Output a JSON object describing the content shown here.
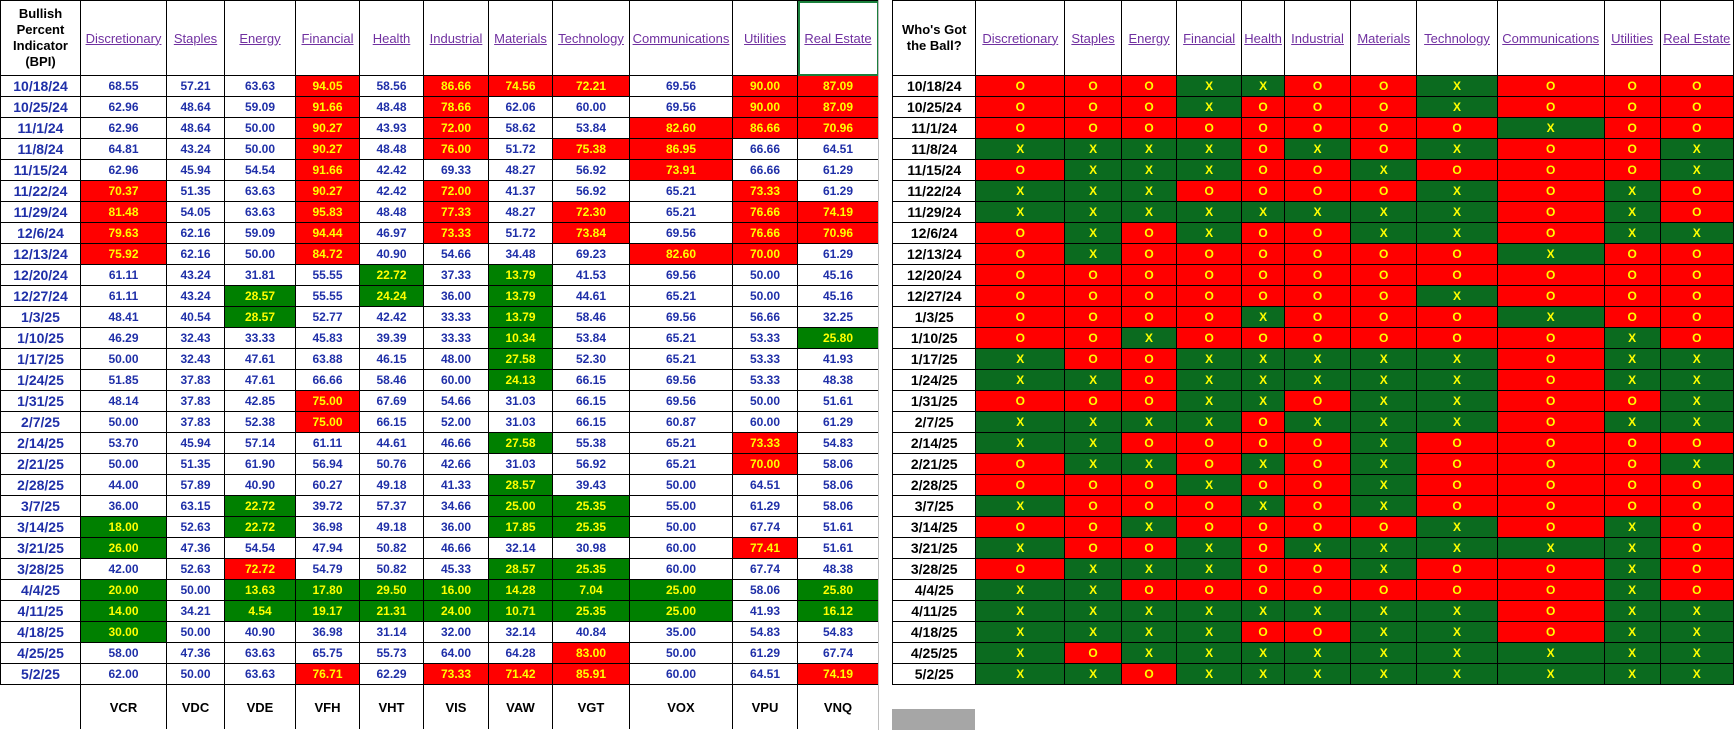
{
  "bpi_header": "Bullish Percent Indicator (BPI)",
  "ball_header": "Who's Got the Ball?",
  "sectors": [
    "Discretionary",
    "Staples",
    "Energy",
    "Financial",
    "Health",
    "Industrial",
    "Materials",
    "Technology",
    "Communications",
    "Utilities",
    "Real Estate"
  ],
  "tickers": [
    "VCR",
    "VDC",
    "VDE",
    "VFH",
    "VHT",
    "VIS",
    "VAW",
    "VGT",
    "VOX",
    "VPU",
    "VNQ"
  ],
  "dates": [
    "10/18/24",
    "10/25/24",
    "11/1/24",
    "11/8/24",
    "11/15/24",
    "11/22/24",
    "11/29/24",
    "12/6/24",
    "12/13/24",
    "12/20/24",
    "12/27/24",
    "1/3/25",
    "1/10/25",
    "1/17/25",
    "1/24/25",
    "1/31/25",
    "2/7/25",
    "2/14/25",
    "2/21/25",
    "2/28/25",
    "3/7/25",
    "3/14/25",
    "3/21/25",
    "3/28/25",
    "4/4/25",
    "4/11/25",
    "4/18/25",
    "4/25/25",
    "5/2/25"
  ],
  "bpi_values": [
    [
      "68.55",
      "57.21",
      "63.63",
      "94.05",
      "58.56",
      "86.66",
      "74.56",
      "72.21",
      "69.56",
      "90.00",
      "87.09"
    ],
    [
      "62.96",
      "48.64",
      "59.09",
      "91.66",
      "48.48",
      "78.66",
      "62.06",
      "60.00",
      "69.56",
      "90.00",
      "87.09"
    ],
    [
      "62.96",
      "48.64",
      "50.00",
      "90.27",
      "43.93",
      "72.00",
      "58.62",
      "53.84",
      "82.60",
      "86.66",
      "70.96"
    ],
    [
      "64.81",
      "43.24",
      "50.00",
      "90.27",
      "48.48",
      "76.00",
      "51.72",
      "75.38",
      "86.95",
      "66.66",
      "64.51"
    ],
    [
      "62.96",
      "45.94",
      "54.54",
      "91.66",
      "42.42",
      "69.33",
      "48.27",
      "56.92",
      "73.91",
      "66.66",
      "61.29"
    ],
    [
      "70.37",
      "51.35",
      "63.63",
      "90.27",
      "42.42",
      "72.00",
      "41.37",
      "56.92",
      "65.21",
      "73.33",
      "61.29"
    ],
    [
      "81.48",
      "54.05",
      "63.63",
      "95.83",
      "48.48",
      "77.33",
      "48.27",
      "72.30",
      "65.21",
      "76.66",
      "74.19"
    ],
    [
      "79.63",
      "62.16",
      "59.09",
      "94.44",
      "46.97",
      "73.33",
      "51.72",
      "73.84",
      "69.56",
      "76.66",
      "70.96"
    ],
    [
      "75.92",
      "62.16",
      "50.00",
      "84.72",
      "40.90",
      "54.66",
      "34.48",
      "69.23",
      "82.60",
      "70.00",
      "61.29"
    ],
    [
      "61.11",
      "43.24",
      "31.81",
      "55.55",
      "22.72",
      "37.33",
      "13.79",
      "41.53",
      "69.56",
      "50.00",
      "45.16"
    ],
    [
      "61.11",
      "43.24",
      "28.57",
      "55.55",
      "24.24",
      "36.00",
      "13.79",
      "44.61",
      "65.21",
      "50.00",
      "45.16"
    ],
    [
      "48.41",
      "40.54",
      "28.57",
      "52.77",
      "42.42",
      "33.33",
      "13.79",
      "58.46",
      "69.56",
      "56.66",
      "32.25"
    ],
    [
      "46.29",
      "32.43",
      "33.33",
      "45.83",
      "39.39",
      "33.33",
      "10.34",
      "53.84",
      "65.21",
      "53.33",
      "25.80"
    ],
    [
      "50.00",
      "32.43",
      "47.61",
      "63.88",
      "46.15",
      "48.00",
      "27.58",
      "52.30",
      "65.21",
      "53.33",
      "41.93"
    ],
    [
      "51.85",
      "37.83",
      "47.61",
      "66.66",
      "58.46",
      "60.00",
      "24.13",
      "66.15",
      "69.56",
      "53.33",
      "48.38"
    ],
    [
      "48.14",
      "37.83",
      "42.85",
      "75.00",
      "67.69",
      "54.66",
      "31.03",
      "66.15",
      "69.56",
      "50.00",
      "51.61"
    ],
    [
      "50.00",
      "37.83",
      "52.38",
      "75.00",
      "66.15",
      "52.00",
      "31.03",
      "66.15",
      "60.87",
      "60.00",
      "61.29"
    ],
    [
      "53.70",
      "45.94",
      "57.14",
      "61.11",
      "44.61",
      "46.66",
      "27.58",
      "55.38",
      "65.21",
      "73.33",
      "54.83"
    ],
    [
      "50.00",
      "51.35",
      "61.90",
      "56.94",
      "50.76",
      "42.66",
      "31.03",
      "56.92",
      "65.21",
      "70.00",
      "58.06"
    ],
    [
      "44.00",
      "57.89",
      "40.90",
      "60.27",
      "49.18",
      "41.33",
      "28.57",
      "39.43",
      "50.00",
      "64.51",
      "58.06"
    ],
    [
      "36.00",
      "63.15",
      "22.72",
      "39.72",
      "57.37",
      "34.66",
      "25.00",
      "25.35",
      "55.00",
      "61.29",
      "58.06"
    ],
    [
      "18.00",
      "52.63",
      "22.72",
      "36.98",
      "49.18",
      "36.00",
      "17.85",
      "25.35",
      "50.00",
      "67.74",
      "51.61"
    ],
    [
      "26.00",
      "47.36",
      "54.54",
      "47.94",
      "50.82",
      "46.66",
      "32.14",
      "30.98",
      "60.00",
      "77.41",
      "51.61"
    ],
    [
      "42.00",
      "52.63",
      "72.72",
      "54.79",
      "50.82",
      "45.33",
      "28.57",
      "25.35",
      "60.00",
      "67.74",
      "48.38"
    ],
    [
      "20.00",
      "50.00",
      "13.63",
      "17.80",
      "29.50",
      "16.00",
      "14.28",
      "7.04",
      "25.00",
      "58.06",
      "25.80"
    ],
    [
      "14.00",
      "34.21",
      "4.54",
      "19.17",
      "21.31",
      "24.00",
      "10.71",
      "25.35",
      "25.00",
      "41.93",
      "16.12"
    ],
    [
      "30.00",
      "50.00",
      "40.90",
      "36.98",
      "31.14",
      "32.00",
      "32.14",
      "40.84",
      "35.00",
      "54.83",
      "54.83"
    ],
    [
      "58.00",
      "47.36",
      "63.63",
      "65.75",
      "55.73",
      "64.00",
      "64.28",
      "83.00",
      "50.00",
      "61.29",
      "67.74"
    ],
    [
      "62.00",
      "50.00",
      "63.63",
      "76.71",
      "62.29",
      "73.33",
      "71.42",
      "85.91",
      "60.00",
      "64.51",
      "74.19"
    ]
  ],
  "bpi_status": [
    [
      "n",
      "n",
      "n",
      "h",
      "n",
      "h",
      "h",
      "h",
      "n",
      "h",
      "h"
    ],
    [
      "n",
      "n",
      "n",
      "h",
      "n",
      "h",
      "n",
      "n",
      "n",
      "h",
      "h"
    ],
    [
      "n",
      "n",
      "n",
      "h",
      "n",
      "h",
      "n",
      "n",
      "h",
      "h",
      "h"
    ],
    [
      "n",
      "n",
      "n",
      "h",
      "n",
      "h",
      "n",
      "h",
      "h",
      "n",
      "n"
    ],
    [
      "n",
      "n",
      "n",
      "h",
      "n",
      "n",
      "n",
      "n",
      "h",
      "n",
      "n"
    ],
    [
      "h",
      "n",
      "n",
      "h",
      "n",
      "h",
      "n",
      "n",
      "n",
      "h",
      "n"
    ],
    [
      "h",
      "n",
      "n",
      "h",
      "n",
      "h",
      "n",
      "h",
      "n",
      "h",
      "h"
    ],
    [
      "h",
      "n",
      "n",
      "h",
      "n",
      "h",
      "n",
      "h",
      "n",
      "h",
      "h"
    ],
    [
      "h",
      "n",
      "n",
      "h",
      "n",
      "n",
      "n",
      "n",
      "h",
      "h",
      "n"
    ],
    [
      "n",
      "n",
      "n",
      "n",
      "l",
      "n",
      "l",
      "n",
      "n",
      "n",
      "n"
    ],
    [
      "n",
      "n",
      "l",
      "n",
      "l",
      "n",
      "l",
      "n",
      "n",
      "n",
      "n"
    ],
    [
      "n",
      "n",
      "l",
      "n",
      "n",
      "n",
      "l",
      "n",
      "n",
      "n",
      "n"
    ],
    [
      "n",
      "n",
      "n",
      "n",
      "n",
      "n",
      "l",
      "n",
      "n",
      "n",
      "l"
    ],
    [
      "n",
      "n",
      "n",
      "n",
      "n",
      "n",
      "l",
      "n",
      "n",
      "n",
      "n"
    ],
    [
      "n",
      "n",
      "n",
      "n",
      "n",
      "n",
      "l",
      "n",
      "n",
      "n",
      "n"
    ],
    [
      "n",
      "n",
      "n",
      "h",
      "n",
      "n",
      "n",
      "n",
      "n",
      "n",
      "n"
    ],
    [
      "n",
      "n",
      "n",
      "h",
      "n",
      "n",
      "n",
      "n",
      "n",
      "n",
      "n"
    ],
    [
      "n",
      "n",
      "n",
      "n",
      "n",
      "n",
      "l",
      "n",
      "n",
      "h",
      "n"
    ],
    [
      "n",
      "n",
      "n",
      "n",
      "n",
      "n",
      "n",
      "n",
      "n",
      "h",
      "n"
    ],
    [
      "n",
      "n",
      "n",
      "n",
      "n",
      "n",
      "l",
      "n",
      "n",
      "n",
      "n"
    ],
    [
      "n",
      "n",
      "l",
      "n",
      "n",
      "n",
      "l",
      "l",
      "n",
      "n",
      "n"
    ],
    [
      "l",
      "n",
      "l",
      "n",
      "n",
      "n",
      "l",
      "l",
      "n",
      "n",
      "n"
    ],
    [
      "l",
      "n",
      "n",
      "n",
      "n",
      "n",
      "n",
      "n",
      "n",
      "h",
      "n"
    ],
    [
      "n",
      "n",
      "h",
      "n",
      "n",
      "n",
      "l",
      "l",
      "n",
      "n",
      "n"
    ],
    [
      "l",
      "n",
      "l",
      "l",
      "l",
      "l",
      "l",
      "l",
      "l",
      "n",
      "l"
    ],
    [
      "l",
      "n",
      "l",
      "l",
      "l",
      "l",
      "l",
      "l",
      "l",
      "n",
      "l"
    ],
    [
      "l",
      "n",
      "n",
      "n",
      "n",
      "n",
      "n",
      "n",
      "n",
      "n",
      "n"
    ],
    [
      "n",
      "n",
      "n",
      "n",
      "n",
      "n",
      "n",
      "h",
      "n",
      "n",
      "n"
    ],
    [
      "n",
      "n",
      "n",
      "h",
      "n",
      "h",
      "h",
      "h",
      "n",
      "n",
      "h"
    ]
  ],
  "ball_values": [
    [
      "O",
      "O",
      "O",
      "X",
      "X",
      "O",
      "O",
      "X",
      "O",
      "O",
      "O"
    ],
    [
      "O",
      "O",
      "O",
      "X",
      "O",
      "O",
      "O",
      "X",
      "O",
      "O",
      "O"
    ],
    [
      "O",
      "O",
      "O",
      "O",
      "O",
      "O",
      "O",
      "O",
      "X",
      "O",
      "O"
    ],
    [
      "X",
      "X",
      "X",
      "X",
      "O",
      "X",
      "O",
      "X",
      "O",
      "O",
      "X"
    ],
    [
      "O",
      "X",
      "X",
      "X",
      "O",
      "O",
      "X",
      "O",
      "O",
      "O",
      "X"
    ],
    [
      "X",
      "X",
      "X",
      "O",
      "O",
      "O",
      "O",
      "X",
      "O",
      "X",
      "O"
    ],
    [
      "X",
      "X",
      "X",
      "X",
      "X",
      "X",
      "X",
      "X",
      "O",
      "X",
      "O"
    ],
    [
      "O",
      "X",
      "O",
      "X",
      "O",
      "O",
      "X",
      "X",
      "O",
      "X",
      "X"
    ],
    [
      "O",
      "X",
      "O",
      "O",
      "O",
      "O",
      "O",
      "O",
      "X",
      "O",
      "O"
    ],
    [
      "O",
      "O",
      "O",
      "O",
      "O",
      "O",
      "O",
      "O",
      "O",
      "O",
      "O"
    ],
    [
      "O",
      "O",
      "O",
      "O",
      "O",
      "O",
      "O",
      "X",
      "O",
      "O",
      "O"
    ],
    [
      "O",
      "O",
      "O",
      "O",
      "X",
      "O",
      "O",
      "O",
      "X",
      "O",
      "O"
    ],
    [
      "O",
      "O",
      "X",
      "O",
      "O",
      "O",
      "O",
      "O",
      "O",
      "X",
      "O"
    ],
    [
      "X",
      "O",
      "O",
      "X",
      "X",
      "X",
      "X",
      "X",
      "O",
      "X",
      "X"
    ],
    [
      "X",
      "X",
      "O",
      "X",
      "X",
      "X",
      "X",
      "X",
      "O",
      "X",
      "X"
    ],
    [
      "O",
      "O",
      "O",
      "X",
      "X",
      "O",
      "X",
      "X",
      "O",
      "O",
      "X"
    ],
    [
      "X",
      "X",
      "X",
      "X",
      "O",
      "X",
      "X",
      "X",
      "O",
      "X",
      "X"
    ],
    [
      "X",
      "X",
      "O",
      "O",
      "O",
      "O",
      "X",
      "O",
      "O",
      "O",
      "O"
    ],
    [
      "O",
      "X",
      "X",
      "O",
      "X",
      "O",
      "X",
      "O",
      "O",
      "O",
      "X"
    ],
    [
      "O",
      "O",
      "O",
      "X",
      "O",
      "O",
      "X",
      "O",
      "O",
      "O",
      "O"
    ],
    [
      "X",
      "O",
      "O",
      "O",
      "X",
      "O",
      "X",
      "O",
      "O",
      "O",
      "O"
    ],
    [
      "O",
      "O",
      "X",
      "O",
      "O",
      "O",
      "O",
      "X",
      "O",
      "X",
      "O"
    ],
    [
      "X",
      "O",
      "O",
      "X",
      "O",
      "X",
      "X",
      "X",
      "X",
      "X",
      "O"
    ],
    [
      "O",
      "X",
      "X",
      "X",
      "O",
      "O",
      "X",
      "O",
      "O",
      "X",
      "O"
    ],
    [
      "X",
      "X",
      "O",
      "O",
      "O",
      "O",
      "O",
      "O",
      "O",
      "X",
      "O"
    ],
    [
      "X",
      "X",
      "X",
      "X",
      "X",
      "X",
      "X",
      "X",
      "O",
      "X",
      "X"
    ],
    [
      "X",
      "X",
      "X",
      "X",
      "O",
      "O",
      "X",
      "X",
      "O",
      "X",
      "X"
    ],
    [
      "X",
      "O",
      "X",
      "X",
      "X",
      "X",
      "X",
      "X",
      "X",
      "X",
      "X"
    ],
    [
      "X",
      "X",
      "O",
      "X",
      "X",
      "X",
      "X",
      "X",
      "X",
      "X",
      "X"
    ]
  ]
}
